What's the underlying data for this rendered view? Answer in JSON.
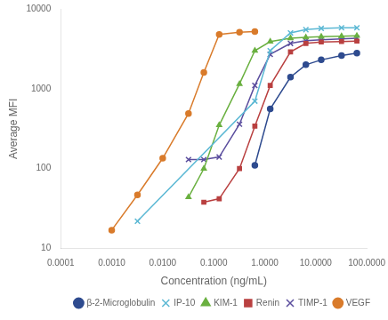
{
  "chart_data": {
    "type": "line",
    "xlabel": "Concentration (ng/mL)",
    "ylabel": "Average MFI",
    "log": true,
    "grid": false,
    "legend": "lower right",
    "xlim": [
      0.0001,
      100
    ],
    "ylim": [
      10,
      10000
    ],
    "xticks": [
      0.0001,
      {
        "value": 0.001,
        "label": "0.0010"
      },
      {
        "value": 0.01,
        "label": "0.0100"
      },
      {
        "value": 0.1,
        "label": "0.1000"
      },
      {
        "value": 1,
        "label": "1.0000"
      },
      {
        "value": 10,
        "label": "10.0000"
      },
      {
        "value": 100,
        "label": "100.0000"
      }
    ],
    "yticks": [
      10,
      100,
      1000,
      10000
    ],
    "series": [
      {
        "name": "β-2-Microglobulin",
        "color": "#2E4B8F",
        "marker": "circle",
        "x": [
          0.64,
          1.28,
          3.2,
          6.4,
          12.8,
          32.0,
          64.0
        ],
        "values": [
          110,
          560,
          1400,
          2000,
          2300,
          2600,
          2800
        ]
      },
      {
        "name": "IP-10",
        "color": "#5BB8D4",
        "marker": "x",
        "x": [
          0.0032,
          0.64,
          1.28,
          3.2,
          6.4,
          12.8,
          32.0,
          64.0
        ],
        "values": [
          22,
          700,
          3000,
          5000,
          5500,
          5700,
          5800,
          5800
        ]
      },
      {
        "name": "KIM-1",
        "color": "#6AB040",
        "marker": "triangle",
        "x": [
          0.032,
          0.064,
          0.128,
          0.32,
          0.64,
          1.28,
          3.2,
          6.4,
          12.8,
          32.0,
          64.0
        ],
        "values": [
          44,
          100,
          350,
          1150,
          3000,
          3900,
          4300,
          4400,
          4500,
          4550,
          4600
        ]
      },
      {
        "name": "Renin",
        "color": "#B94040",
        "marker": "square",
        "x": [
          0.064,
          0.128,
          0.32,
          0.64,
          1.28,
          3.2,
          6.4,
          12.8,
          32.0,
          64.0
        ],
        "values": [
          38,
          42,
          100,
          340,
          1100,
          2900,
          3700,
          3850,
          3900,
          3950
        ]
      },
      {
        "name": "TIMP-1",
        "color": "#5B4E9E",
        "marker": "x",
        "x": [
          0.032,
          0.064,
          0.128,
          0.32,
          0.64,
          1.28,
          3.2,
          6.4,
          12.8,
          32.0,
          64.0
        ],
        "values": [
          130,
          130,
          140,
          360,
          1100,
          2700,
          3700,
          4000,
          4100,
          4200,
          4300
        ]
      },
      {
        "name": "VEGF",
        "color": "#D97B2B",
        "marker": "circle",
        "x": [
          0.001,
          0.0032,
          0.01,
          0.032,
          0.064,
          0.128,
          0.32,
          0.64
        ],
        "values": [
          17,
          47,
          135,
          490,
          1600,
          4800,
          5100,
          5200
        ]
      }
    ]
  }
}
